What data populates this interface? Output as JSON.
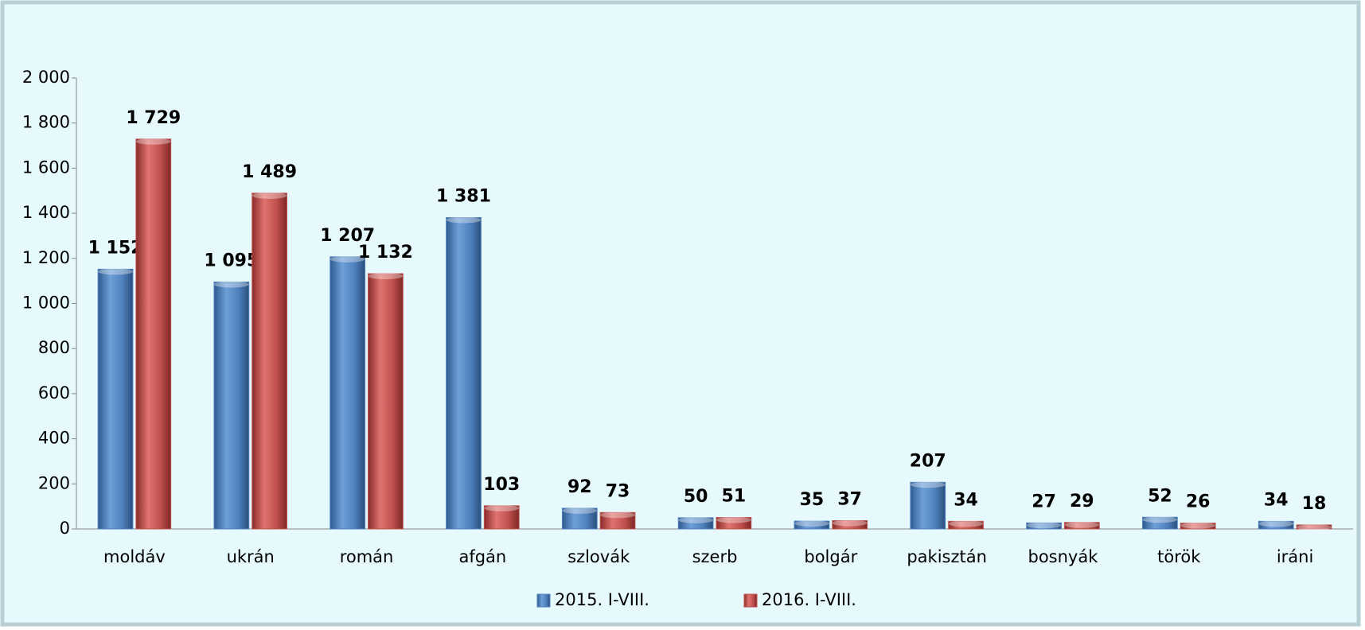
{
  "chart_data": {
    "type": "bar",
    "categories": [
      "moldáv",
      "ukrán",
      "román",
      "afgán",
      "szlovák",
      "szerb",
      "bolgár",
      "pakisztán",
      "bosnyák",
      "török",
      "iráni"
    ],
    "series": [
      {
        "name": "2015. I-VIII.",
        "color": "#4f81bd",
        "values": [
          1152,
          1095,
          1207,
          1381,
          92,
          50,
          35,
          207,
          27,
          52,
          34
        ],
        "value_labels": [
          "1 152",
          "1 095",
          "1 207",
          "1 381",
          "92",
          "50",
          "35",
          "207",
          "27",
          "52",
          "34"
        ]
      },
      {
        "name": "2016. I-VIII.",
        "color": "#c0504d",
        "values": [
          1729,
          1489,
          1132,
          103,
          73,
          51,
          37,
          34,
          29,
          26,
          18
        ],
        "value_labels": [
          "1 729",
          "1 489",
          "1 132",
          "103",
          "73",
          "51",
          "37",
          "34",
          "29",
          "26",
          "18"
        ]
      }
    ],
    "ylim": [
      0,
      2000
    ],
    "yticks": [
      0,
      200,
      400,
      600,
      800,
      {
        "value": 1000,
        "label": "1 000"
      },
      {
        "value": 1200,
        "label": "1 200"
      },
      {
        "value": 1400,
        "label": "1 400"
      },
      {
        "value": 1600,
        "label": "1 600"
      },
      {
        "value": 1800,
        "label": "1 800"
      },
      {
        "value": 2000,
        "label": "2 000"
      }
    ],
    "legend": "bottom"
  }
}
